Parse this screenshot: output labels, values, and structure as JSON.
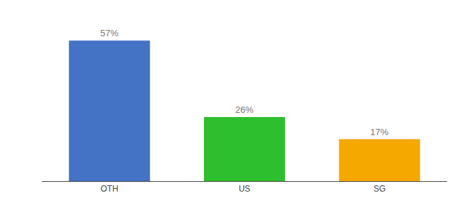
{
  "chart_data": {
    "type": "bar",
    "categories": [
      "OTH",
      "US",
      "SG"
    ],
    "values": [
      57,
      26,
      17
    ],
    "value_labels": [
      "57%",
      "26%",
      "17%"
    ],
    "data_labels": true,
    "colors": [
      "#4472C4",
      "#2EBF2E",
      "#F5A800"
    ],
    "ylim": [
      0,
      65
    ],
    "tick_labels": "x",
    "grid": false
  }
}
